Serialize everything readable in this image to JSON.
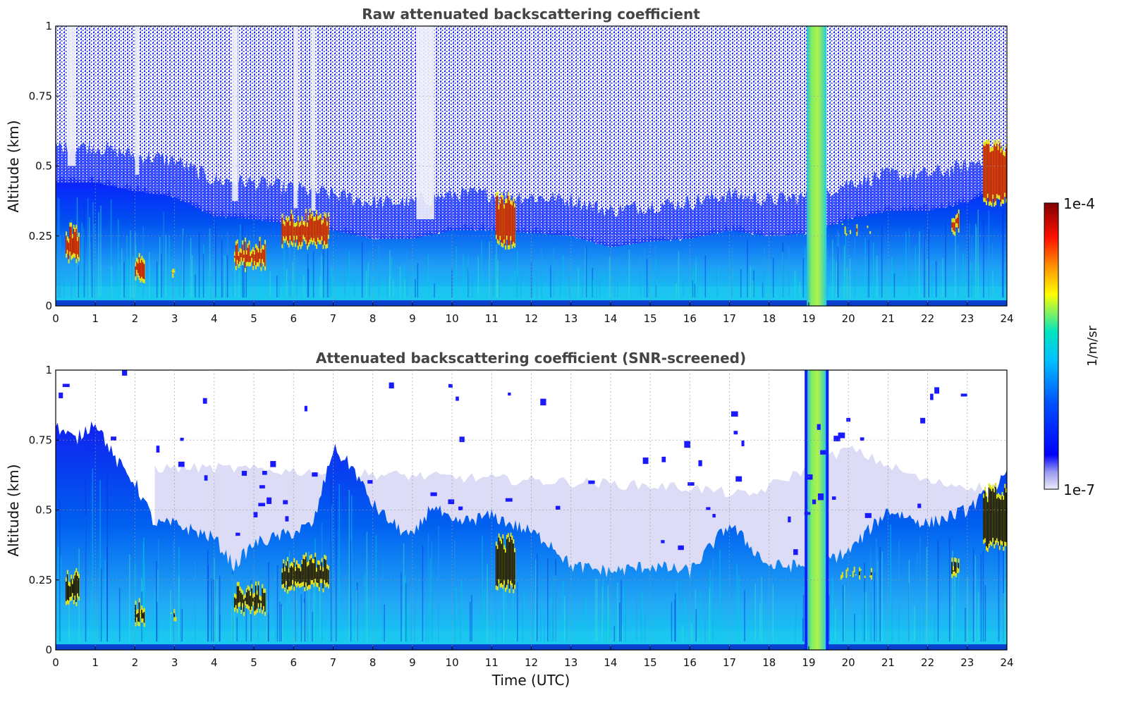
{
  "chart_data": [
    {
      "type": "heatmap",
      "title": "Raw attenuated backscattering coefficient",
      "ylabel": "Altitude (km)",
      "xlabel": "",
      "xlim": [
        0,
        24
      ],
      "ylim": [
        0,
        1
      ],
      "x_ticks": [
        "0",
        "1",
        "2",
        "3",
        "4",
        "5",
        "6",
        "7",
        "8",
        "9",
        "10",
        "11",
        "12",
        "13",
        "14",
        "15",
        "16",
        "17",
        "18",
        "19",
        "20",
        "21",
        "22",
        "23",
        "24"
      ],
      "y_ticks": [
        "0",
        "0.25",
        "0.5",
        "0.75",
        "1"
      ],
      "grid": true,
      "screened": false,
      "boundary_layer_top_km": [
        [
          0,
          0.45
        ],
        [
          1,
          0.45
        ],
        [
          2,
          0.42
        ],
        [
          3,
          0.4
        ],
        [
          4,
          0.33
        ],
        [
          5,
          0.32
        ],
        [
          6,
          0.3
        ],
        [
          7,
          0.28
        ],
        [
          8,
          0.25
        ],
        [
          9,
          0.25
        ],
        [
          10,
          0.28
        ],
        [
          11,
          0.28
        ],
        [
          12,
          0.27
        ],
        [
          13,
          0.26
        ],
        [
          14,
          0.22
        ],
        [
          15,
          0.24
        ],
        [
          16,
          0.25
        ],
        [
          17,
          0.28
        ],
        [
          18,
          0.26
        ],
        [
          19,
          0.27
        ],
        [
          20,
          0.32
        ],
        [
          21,
          0.35
        ],
        [
          22,
          0.35
        ],
        [
          23,
          0.38
        ],
        [
          24,
          0.45
        ]
      ],
      "high_signal_features": [
        {
          "x": [
            0.25,
            0.6
          ],
          "y": [
            0.15,
            0.3
          ]
        },
        {
          "x": [
            2.0,
            2.25
          ],
          "y": [
            0.08,
            0.2
          ]
        },
        {
          "x": [
            2.9,
            3.05
          ],
          "y": [
            0.1,
            0.15
          ]
        },
        {
          "x": [
            4.5,
            5.3
          ],
          "y": [
            0.12,
            0.25
          ]
        },
        {
          "x": [
            5.7,
            6.9
          ],
          "y": [
            0.2,
            0.35
          ]
        },
        {
          "x": [
            11.1,
            11.6
          ],
          "y": [
            0.2,
            0.42
          ]
        },
        {
          "x": [
            19.8,
            20.6
          ],
          "y": [
            0.25,
            0.3
          ]
        },
        {
          "x": [
            22.6,
            22.8
          ],
          "y": [
            0.25,
            0.35
          ]
        },
        {
          "x": [
            23.4,
            24.0
          ],
          "y": [
            0.35,
            0.6
          ]
        }
      ],
      "precip_band_x": [
        18.95,
        19.45
      ],
      "missing_data_x": [
        [
          0.3,
          0.5
        ],
        [
          2.0,
          2.1
        ],
        [
          4.45,
          4.6
        ],
        [
          6.0,
          6.1
        ],
        [
          6.45,
          6.55
        ],
        [
          9.1,
          9.55
        ]
      ]
    },
    {
      "type": "heatmap",
      "title": "Attenuated backscattering coefficient (SNR-screened)",
      "ylabel": "Altitude (km)",
      "xlabel": "Time (UTC)",
      "xlim": [
        0,
        24
      ],
      "ylim": [
        0,
        1
      ],
      "x_ticks": [
        "0",
        "1",
        "2",
        "3",
        "4",
        "5",
        "6",
        "7",
        "8",
        "9",
        "10",
        "11",
        "12",
        "13",
        "14",
        "15",
        "16",
        "17",
        "18",
        "19",
        "20",
        "21",
        "22",
        "23",
        "24"
      ],
      "y_ticks": [
        "0",
        "0.25",
        "0.5",
        "0.75",
        "1"
      ],
      "grid": true,
      "screened": true,
      "signal_top_km": [
        [
          0,
          0.8
        ],
        [
          0.5,
          0.75
        ],
        [
          1,
          0.82
        ],
        [
          1.5,
          0.68
        ],
        [
          2,
          0.6
        ],
        [
          2.5,
          0.45
        ],
        [
          3,
          0.45
        ],
        [
          4,
          0.4
        ],
        [
          4.5,
          0.3
        ],
        [
          5,
          0.38
        ],
        [
          6,
          0.42
        ],
        [
          6.5,
          0.45
        ],
        [
          7,
          0.72
        ],
        [
          7.5,
          0.65
        ],
        [
          8,
          0.52
        ],
        [
          8.5,
          0.45
        ],
        [
          9,
          0.4
        ],
        [
          9.5,
          0.52
        ],
        [
          10,
          0.45
        ],
        [
          11,
          0.48
        ],
        [
          12,
          0.42
        ],
        [
          12.5,
          0.38
        ],
        [
          13,
          0.3
        ],
        [
          14,
          0.28
        ],
        [
          15,
          0.3
        ],
        [
          16,
          0.28
        ],
        [
          17,
          0.45
        ],
        [
          18,
          0.3
        ],
        [
          19,
          0.3
        ],
        [
          20,
          0.35
        ],
        [
          21,
          0.5
        ],
        [
          22,
          0.45
        ],
        [
          23,
          0.5
        ],
        [
          24,
          0.62
        ]
      ],
      "faint_layer_top_km": [
        [
          2.5,
          0.65
        ],
        [
          4,
          0.65
        ],
        [
          13,
          0.6
        ],
        [
          16,
          0.58
        ],
        [
          17.5,
          0.55
        ],
        [
          20,
          0.72
        ],
        [
          22,
          0.6
        ],
        [
          23.5,
          0.58
        ]
      ],
      "high_signal_features": [
        {
          "x": [
            0.25,
            0.6
          ],
          "y": [
            0.15,
            0.3
          ]
        },
        {
          "x": [
            2.0,
            2.25
          ],
          "y": [
            0.08,
            0.2
          ]
        },
        {
          "x": [
            2.9,
            3.05
          ],
          "y": [
            0.1,
            0.15
          ]
        },
        {
          "x": [
            4.5,
            5.3
          ],
          "y": [
            0.12,
            0.25
          ]
        },
        {
          "x": [
            5.7,
            6.9
          ],
          "y": [
            0.2,
            0.35
          ]
        },
        {
          "x": [
            11.1,
            11.6
          ],
          "y": [
            0.2,
            0.42
          ]
        },
        {
          "x": [
            19.8,
            20.6
          ],
          "y": [
            0.25,
            0.3
          ]
        },
        {
          "x": [
            22.6,
            22.8
          ],
          "y": [
            0.25,
            0.35
          ]
        },
        {
          "x": [
            23.4,
            24.0
          ],
          "y": [
            0.35,
            0.6
          ]
        }
      ],
      "precip_band_x": [
        18.95,
        19.45
      ]
    }
  ],
  "colorbar": {
    "label": "1/m/sr",
    "max_label": "1e-4",
    "min_label": "1e-7",
    "scale": "log",
    "colormap": [
      "#ececfa",
      "#0000ff",
      "#00bfff",
      "#00e5c0",
      "#ffff00",
      "#ff8000",
      "#ff0000",
      "#800000"
    ]
  }
}
